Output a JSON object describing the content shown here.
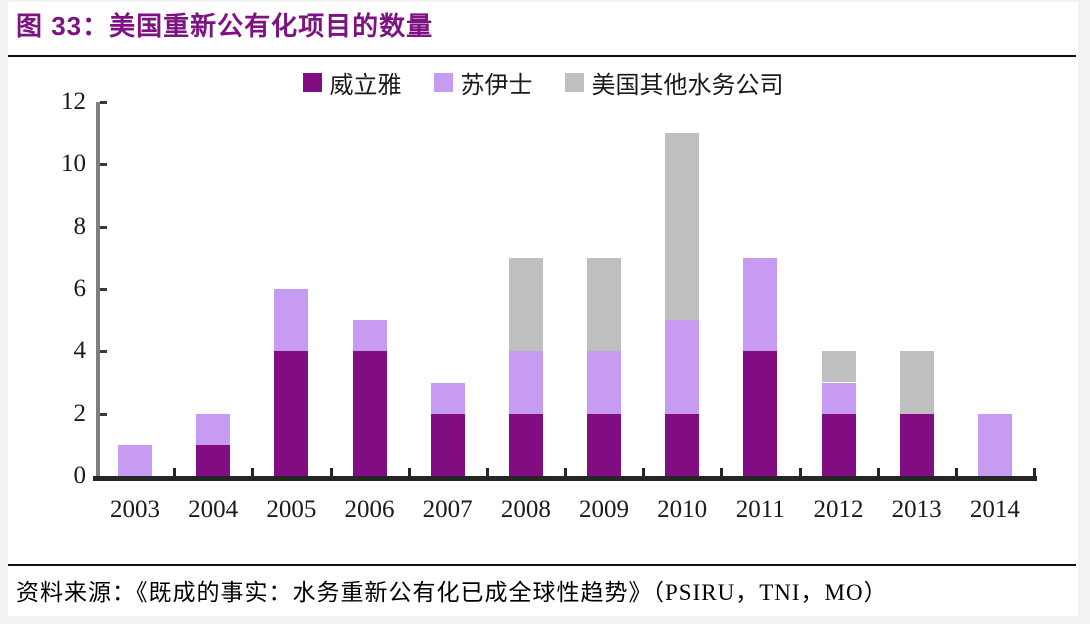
{
  "page": {
    "title": "图 33：美国重新公有化项目的数量",
    "source": "资料来源：《既成的事实：水务重新公有化已成全球性趋势》（PSIRU，TNI，MO）"
  },
  "colors": {
    "title_text": "#7E1283",
    "veolia": "#820C82",
    "suez": "#C89BF2",
    "other_gray": "#BFBFBF",
    "y_axis_line": "#7F7F7F",
    "baseline": "#262626"
  },
  "chart_data": {
    "type": "bar",
    "stacked": true,
    "title": "美国重新公有化项目的数量",
    "categories": [
      "2003",
      "2004",
      "2005",
      "2006",
      "2007",
      "2008",
      "2009",
      "2010",
      "2011",
      "2012",
      "2013",
      "2014"
    ],
    "series": [
      {
        "name": "威立雅",
        "color": "#820C82",
        "values": [
          0,
          1,
          4,
          4,
          2,
          2,
          2,
          2,
          4,
          2,
          2,
          0
        ]
      },
      {
        "name": "苏伊士",
        "color": "#C89BF2",
        "values": [
          1,
          1,
          2,
          1,
          1,
          2,
          2,
          3,
          3,
          1,
          0,
          2
        ]
      },
      {
        "name": "美国其他水务公司",
        "color": "#BFBFBF",
        "values": [
          0,
          0,
          0,
          0,
          0,
          3,
          3,
          6,
          0,
          1,
          2,
          0
        ]
      }
    ],
    "totals": [
      1,
      2,
      6,
      5,
      3,
      7,
      7,
      11,
      7,
      4,
      4,
      2
    ],
    "y_ticks": [
      0,
      2,
      4,
      6,
      8,
      10,
      12
    ],
    "ylim": [
      0,
      12
    ],
    "xlabel": "",
    "ylabel": "",
    "legend_position": "top-center",
    "grid": false
  }
}
